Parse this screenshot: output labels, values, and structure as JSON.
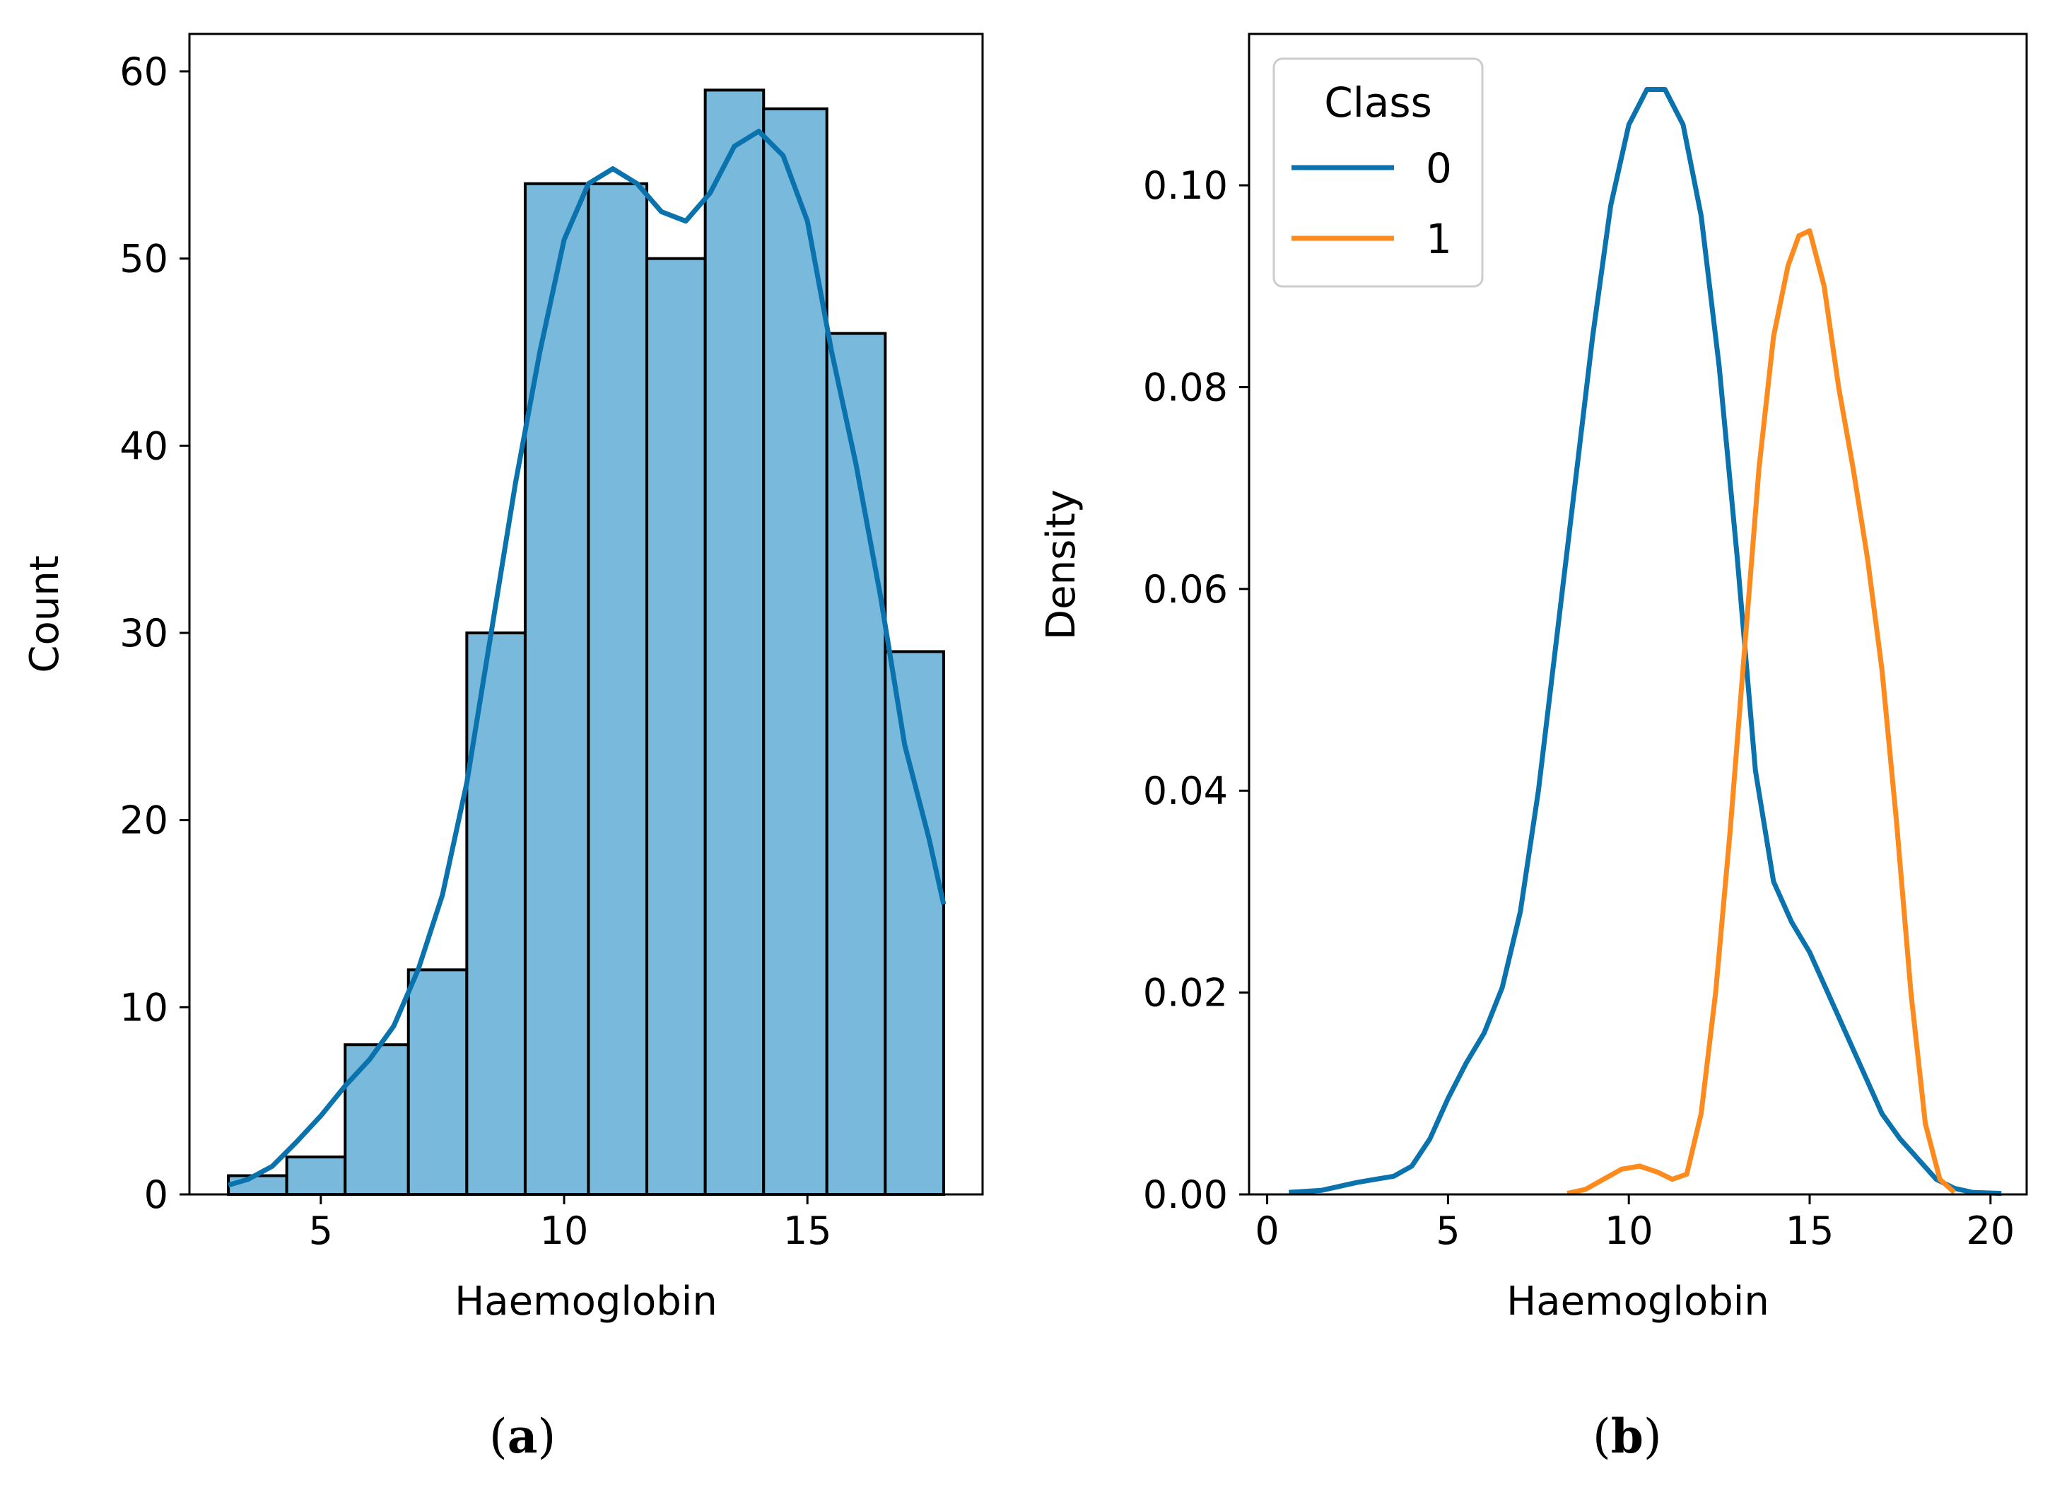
{
  "chart_data": [
    {
      "panel": "(a)",
      "type": "bar",
      "subtype": "histogram-with-kde",
      "title": "",
      "xlabel": "Haemoglobin",
      "ylabel": "Count",
      "xlim": [
        2.3,
        18.6
      ],
      "ylim": [
        0,
        62
      ],
      "xticks": [
        5,
        10,
        15
      ],
      "yticks": [
        0,
        10,
        20,
        30,
        40,
        50,
        60
      ],
      "bins": [
        {
          "start": 3.1,
          "end": 4.3,
          "count": 1
        },
        {
          "start": 4.3,
          "end": 5.5,
          "count": 2
        },
        {
          "start": 5.5,
          "end": 6.8,
          "count": 8
        },
        {
          "start": 6.8,
          "end": 8.0,
          "count": 12
        },
        {
          "start": 8.0,
          "end": 9.2,
          "count": 30
        },
        {
          "start": 9.2,
          "end": 10.5,
          "count": 54
        },
        {
          "start": 10.5,
          "end": 11.7,
          "count": 54
        },
        {
          "start": 11.7,
          "end": 12.9,
          "count": 50
        },
        {
          "start": 12.9,
          "end": 14.1,
          "count": 59
        },
        {
          "start": 14.1,
          "end": 15.4,
          "count": 58
        },
        {
          "start": 15.4,
          "end": 16.6,
          "count": 46
        },
        {
          "start": 16.6,
          "end": 17.8,
          "count": 29
        }
      ],
      "kde": {
        "x": [
          3.1,
          3.5,
          4.0,
          4.5,
          5.0,
          5.5,
          6.0,
          6.5,
          7.0,
          7.5,
          8.0,
          8.5,
          9.0,
          9.5,
          10.0,
          10.5,
          11.0,
          11.5,
          12.0,
          12.5,
          13.0,
          13.5,
          14.0,
          14.5,
          15.0,
          15.5,
          16.0,
          16.5,
          17.0,
          17.5,
          17.8
        ],
        "y": [
          0.5,
          0.8,
          1.5,
          2.8,
          4.2,
          5.8,
          7.2,
          9.0,
          12.0,
          16.0,
          22.0,
          30.0,
          38.0,
          45.0,
          51.0,
          54.0,
          54.8,
          54.0,
          52.5,
          52.0,
          53.5,
          56.0,
          56.8,
          55.5,
          52.0,
          45.0,
          39.0,
          32.0,
          24.0,
          19.0,
          15.5
        ]
      },
      "bar_color": "#78b9dc",
      "line_color": "#0a73ad"
    },
    {
      "panel": "(b)",
      "type": "line",
      "subtype": "kde",
      "title": "",
      "xlabel": "Haemoglobin",
      "ylabel": "Density",
      "xlim": [
        -0.5,
        21.0
      ],
      "ylim": [
        0,
        0.115
      ],
      "xticks": [
        0,
        5,
        10,
        15,
        20
      ],
      "yticks": [
        0.0,
        0.02,
        0.04,
        0.06,
        0.08,
        0.1
      ],
      "ytick_labels": [
        "0.00",
        "0.02",
        "0.04",
        "0.06",
        "0.08",
        "0.10"
      ],
      "legend": {
        "title": "Class",
        "placement": "top-left"
      },
      "series": [
        {
          "name": "0",
          "color": "#0a73ad",
          "x": [
            0.6,
            1.5,
            2.5,
            3.0,
            3.5,
            4.0,
            4.5,
            5.0,
            5.5,
            6.0,
            6.5,
            7.0,
            7.5,
            8.0,
            8.5,
            9.0,
            9.5,
            10.0,
            10.5,
            11.0,
            11.5,
            12.0,
            12.5,
            13.0,
            13.5,
            14.0,
            14.5,
            15.0,
            15.5,
            16.0,
            16.5,
            17.0,
            17.5,
            18.0,
            18.5,
            19.0,
            19.5,
            20.3
          ],
          "y": [
            0.0002,
            0.0004,
            0.0012,
            0.0015,
            0.0018,
            0.0028,
            0.0055,
            0.0095,
            0.013,
            0.016,
            0.0205,
            0.028,
            0.04,
            0.055,
            0.07,
            0.085,
            0.098,
            0.106,
            0.1095,
            0.1095,
            0.106,
            0.097,
            0.082,
            0.063,
            0.042,
            0.031,
            0.027,
            0.024,
            0.02,
            0.016,
            0.012,
            0.008,
            0.0055,
            0.0035,
            0.0015,
            0.0006,
            0.0002,
            0.0001
          ]
        },
        {
          "name": "1",
          "color": "#fd8a1d",
          "x": [
            8.3,
            8.8,
            9.3,
            9.8,
            10.3,
            10.8,
            11.2,
            11.6,
            12.0,
            12.4,
            12.8,
            13.2,
            13.6,
            14.0,
            14.4,
            14.7,
            15.0,
            15.4,
            15.8,
            16.2,
            16.6,
            17.0,
            17.4,
            17.8,
            18.2,
            18.6,
            19.0
          ],
          "y": [
            0.0001,
            0.0005,
            0.0015,
            0.0025,
            0.0028,
            0.0022,
            0.0015,
            0.002,
            0.008,
            0.02,
            0.036,
            0.054,
            0.072,
            0.085,
            0.092,
            0.095,
            0.0955,
            0.09,
            0.08,
            0.072,
            0.063,
            0.052,
            0.037,
            0.02,
            0.007,
            0.0015,
            0.0002
          ]
        }
      ]
    }
  ],
  "captions": {
    "a": "(a)",
    "b": "(b)"
  }
}
